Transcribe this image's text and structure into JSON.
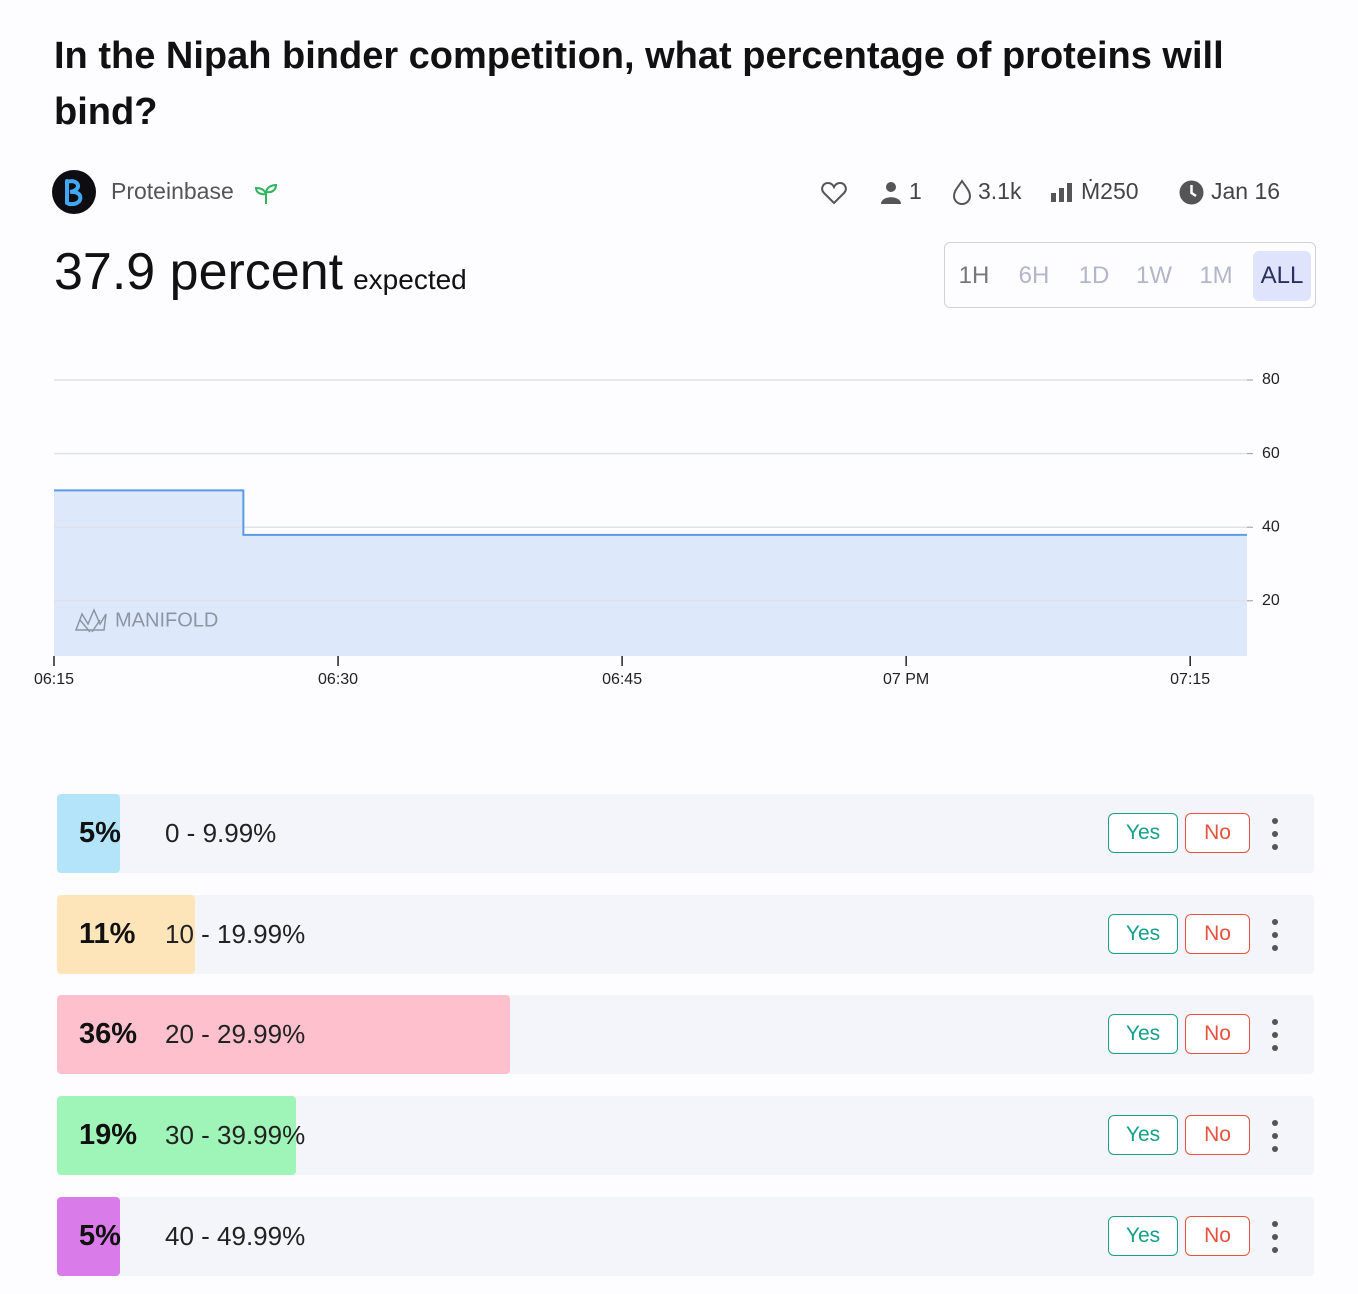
{
  "header": {
    "title": "In the Nipah binder competition, what percentage of proteins will bind?",
    "creator": "Proteinbase",
    "stats": {
      "traders": "1",
      "volume": "3.1k",
      "liquidity": "Ṁ250",
      "close_date": "Jan 16"
    }
  },
  "summary": {
    "value": "37.9 percent",
    "label": "expected"
  },
  "time_ranges": {
    "options": [
      "1H",
      "6H",
      "1D",
      "1W",
      "1M",
      "ALL"
    ],
    "selected": "ALL"
  },
  "chart_data": {
    "type": "line",
    "watermark": "MANIFOLD",
    "x": [
      "18:15",
      "18:25",
      "18:25",
      "18:25",
      "19:18"
    ],
    "series": [
      {
        "color": "#5b9be6",
        "fill": "#dde9fb",
        "values": [
          50,
          50,
          45,
          37.9,
          37.9
        ]
      }
    ],
    "xlim": [
      "18:15",
      "19:18"
    ],
    "xticks": [
      {
        "value": "18:15",
        "label": "06:15"
      },
      {
        "value": "18:30",
        "label": "06:30"
      },
      {
        "value": "18:45",
        "label": "06:45"
      },
      {
        "value": "19:00",
        "label": "07 PM"
      },
      {
        "value": "19:15",
        "label": "07:15"
      }
    ],
    "ylim": [
      5,
      80
    ],
    "yticks": [
      20,
      40,
      60,
      80
    ],
    "grid": true
  },
  "answers": [
    {
      "probability": 5,
      "probability_label": "5%",
      "range": "0 - 9.99%",
      "color": "#b3e4fa"
    },
    {
      "probability": 11,
      "probability_label": "11%",
      "range": "10 - 19.99%",
      "color": "#fde4b9"
    },
    {
      "probability": 36,
      "probability_label": "36%",
      "range": "20 - 29.99%",
      "color": "#fdc0cc"
    },
    {
      "probability": 19,
      "probability_label": "19%",
      "range": "30 - 39.99%",
      "color": "#9ff5b8"
    },
    {
      "probability": 5,
      "probability_label": "5%",
      "range": "40 - 49.99%",
      "color": "#d97ce9"
    }
  ],
  "buttons": {
    "yes": "Yes",
    "no": "No"
  }
}
